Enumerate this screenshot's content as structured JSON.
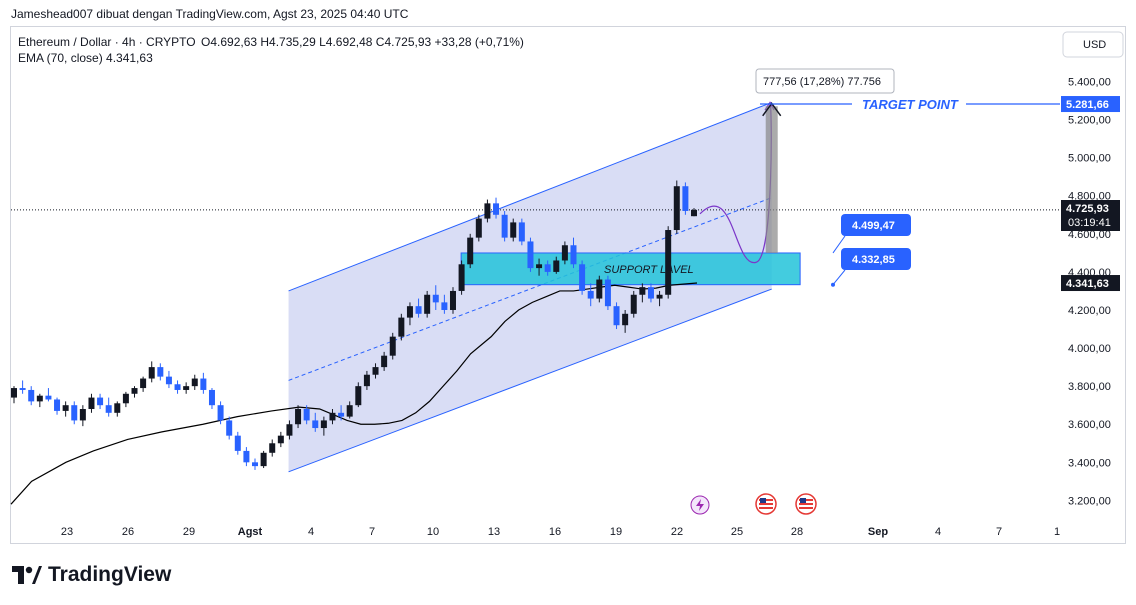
{
  "header": {
    "attribution": "Jameshead007 dibuat dengan TradingView.com, Agst 23, 2025 04:40 UTC"
  },
  "legend": {
    "symbol": "Ethereum / Dollar · 4h · CRYPTO",
    "ohlc": "O4.692,63  H4.735,29  L4.692,48  C4.725,93  +33,28 (+0,71%)",
    "ema": "EMA (70, close)  4.341,63"
  },
  "currency_button": "USD",
  "footer": {
    "brand": "TradingView"
  },
  "colors": {
    "candle_up": "#131722",
    "candle_down": "#2962ff",
    "channel_line": "#2962ff",
    "channel_fill": "#c5cbf0",
    "support_zone": "#22c3d9",
    "target_line": "#2962ff",
    "ema_line": "#000000",
    "projection": "#7b36c9"
  },
  "chart_data": {
    "type": "candlestick",
    "title": "Ethereum / Dollar · 4h · CRYPTO",
    "x_ticks": [
      "23",
      "26",
      "29",
      "Agst",
      "4",
      "7",
      "10",
      "13",
      "16",
      "19",
      "22",
      "25",
      "28",
      "Sep",
      "4",
      "7",
      "1"
    ],
    "y_ticks": [
      "5.400,00",
      "5.200,00",
      "5.000,00",
      "4.800,00",
      "4.600,00",
      "4.400,00",
      "4.200,00",
      "4.000,00",
      "3.800,00",
      "3.600,00",
      "3.400,00",
      "3.200,00"
    ],
    "y_tick_values": [
      5400,
      5200,
      5000,
      4800,
      4600,
      4400,
      4200,
      4000,
      3800,
      3600,
      3400,
      3200
    ],
    "ylim": [
      3140,
      5560
    ],
    "price_labels": {
      "target": {
        "text": "5.281,66",
        "value": 5281.66
      },
      "current": {
        "text": "4.725,93",
        "value": 4725.93
      },
      "countdown": "03:19:41",
      "ema": {
        "text": "4.341,63",
        "value": 4341.63
      }
    },
    "annotations": {
      "measure_label": "777,56 (17,28%) 77.756",
      "target_label": "TARGET POINT",
      "support_label": "SUPPORT LAVEL",
      "zone_top": {
        "text": "4.499,47",
        "value": 4499.47
      },
      "zone_bottom": {
        "text": "4.332,85",
        "value": 4332.85
      }
    },
    "channel": {
      "upper": [
        [
          "Agst 2",
          4300
        ],
        [
          "Agst 26",
          5290
        ]
      ],
      "lower": [
        [
          "Agst 2",
          3350
        ],
        [
          "Agst 26",
          4310
        ]
      ],
      "mid": [
        [
          "Agst 2",
          3830
        ],
        [
          "Agst 26",
          4790
        ]
      ]
    },
    "support_zone": {
      "from": "Agst 11",
      "to": "Agst 28",
      "low": 4332.85,
      "high": 4499.47
    },
    "ema_line": [
      [
        3180,
        0
      ],
      [
        3300,
        0.03
      ],
      [
        3400,
        0.08
      ],
      [
        3460,
        0.12
      ],
      [
        3520,
        0.17
      ],
      [
        3560,
        0.22
      ],
      [
        3600,
        0.28
      ],
      [
        3640,
        0.33
      ],
      [
        3670,
        0.38
      ],
      [
        3690,
        0.42
      ],
      [
        3680,
        0.45
      ],
      [
        3650,
        0.47
      ],
      [
        3620,
        0.49
      ],
      [
        3600,
        0.51
      ],
      [
        3600,
        0.53
      ],
      [
        3605,
        0.55
      ],
      [
        3620,
        0.57
      ],
      [
        3660,
        0.59
      ],
      [
        3720,
        0.61
      ],
      [
        3800,
        0.63
      ],
      [
        3880,
        0.65
      ],
      [
        3970,
        0.67
      ],
      [
        4060,
        0.7
      ],
      [
        4140,
        0.72
      ],
      [
        4200,
        0.74
      ],
      [
        4240,
        0.76
      ],
      [
        4270,
        0.78
      ],
      [
        4300,
        0.8
      ],
      [
        4300,
        0.82
      ],
      [
        4310,
        0.84
      ],
      [
        4320,
        0.86
      ],
      [
        4330,
        0.88
      ],
      [
        4320,
        0.9
      ],
      [
        4310,
        0.92
      ],
      [
        4315,
        0.94
      ],
      [
        4330,
        0.96
      ],
      [
        4341.63,
        1.0
      ]
    ],
    "candles": [
      [
        3740,
        3800,
        3710,
        3790
      ],
      [
        3790,
        3830,
        3760,
        3780
      ],
      [
        3780,
        3800,
        3700,
        3720
      ],
      [
        3720,
        3760,
        3690,
        3750
      ],
      [
        3750,
        3790,
        3720,
        3730
      ],
      [
        3730,
        3740,
        3650,
        3670
      ],
      [
        3670,
        3720,
        3640,
        3700
      ],
      [
        3700,
        3720,
        3600,
        3620
      ],
      [
        3620,
        3700,
        3590,
        3680
      ],
      [
        3680,
        3760,
        3660,
        3740
      ],
      [
        3740,
        3760,
        3680,
        3700
      ],
      [
        3700,
        3740,
        3640,
        3660
      ],
      [
        3660,
        3720,
        3640,
        3710
      ],
      [
        3710,
        3770,
        3690,
        3760
      ],
      [
        3760,
        3800,
        3740,
        3790
      ],
      [
        3790,
        3850,
        3770,
        3840
      ],
      [
        3840,
        3930,
        3820,
        3900
      ],
      [
        3900,
        3920,
        3830,
        3850
      ],
      [
        3850,
        3880,
        3790,
        3810
      ],
      [
        3810,
        3830,
        3760,
        3780
      ],
      [
        3780,
        3820,
        3760,
        3800
      ],
      [
        3800,
        3860,
        3780,
        3840
      ],
      [
        3840,
        3870,
        3760,
        3780
      ],
      [
        3780,
        3790,
        3680,
        3700
      ],
      [
        3700,
        3720,
        3600,
        3620
      ],
      [
        3620,
        3640,
        3520,
        3540
      ],
      [
        3540,
        3560,
        3440,
        3460
      ],
      [
        3460,
        3480,
        3380,
        3400
      ],
      [
        3400,
        3420,
        3360,
        3380
      ],
      [
        3380,
        3460,
        3370,
        3450
      ],
      [
        3450,
        3520,
        3430,
        3500
      ],
      [
        3500,
        3560,
        3480,
        3540
      ],
      [
        3540,
        3620,
        3520,
        3600
      ],
      [
        3600,
        3700,
        3580,
        3680
      ],
      [
        3680,
        3700,
        3600,
        3620
      ],
      [
        3620,
        3660,
        3560,
        3580
      ],
      [
        3580,
        3640,
        3540,
        3620
      ],
      [
        3620,
        3680,
        3600,
        3660
      ],
      [
        3660,
        3700,
        3620,
        3640
      ],
      [
        3640,
        3720,
        3630,
        3700
      ],
      [
        3700,
        3820,
        3690,
        3800
      ],
      [
        3800,
        3880,
        3780,
        3860
      ],
      [
        3860,
        3920,
        3840,
        3900
      ],
      [
        3900,
        3980,
        3880,
        3960
      ],
      [
        3960,
        4080,
        3940,
        4060
      ],
      [
        4060,
        4180,
        4040,
        4160
      ],
      [
        4160,
        4240,
        4120,
        4220
      ],
      [
        4220,
        4260,
        4160,
        4180
      ],
      [
        4180,
        4300,
        4160,
        4280
      ],
      [
        4280,
        4330,
        4200,
        4240
      ],
      [
        4240,
        4280,
        4180,
        4200
      ],
      [
        4200,
        4320,
        4180,
        4300
      ],
      [
        4300,
        4460,
        4280,
        4440
      ],
      [
        4440,
        4600,
        4420,
        4580
      ],
      [
        4580,
        4700,
        4560,
        4680
      ],
      [
        4680,
        4780,
        4660,
        4760
      ],
      [
        4760,
        4790,
        4680,
        4700
      ],
      [
        4700,
        4720,
        4560,
        4580
      ],
      [
        4580,
        4680,
        4560,
        4660
      ],
      [
        4660,
        4680,
        4540,
        4560
      ],
      [
        4560,
        4580,
        4400,
        4420
      ],
      [
        4420,
        4470,
        4380,
        4440
      ],
      [
        4440,
        4460,
        4380,
        4400
      ],
      [
        4400,
        4480,
        4390,
        4460
      ],
      [
        4460,
        4560,
        4440,
        4540
      ],
      [
        4540,
        4580,
        4420,
        4440
      ],
      [
        4440,
        4460,
        4280,
        4300
      ],
      [
        4300,
        4340,
        4220,
        4260
      ],
      [
        4260,
        4380,
        4240,
        4360
      ],
      [
        4360,
        4380,
        4200,
        4220
      ],
      [
        4220,
        4240,
        4100,
        4120
      ],
      [
        4120,
        4200,
        4080,
        4180
      ],
      [
        4180,
        4300,
        4160,
        4280
      ],
      [
        4280,
        4340,
        4240,
        4320
      ],
      [
        4320,
        4340,
        4240,
        4260
      ],
      [
        4260,
        4300,
        4220,
        4280
      ],
      [
        4280,
        4640,
        4260,
        4620
      ],
      [
        4620,
        4880,
        4600,
        4850
      ],
      [
        4850,
        4870,
        4700,
        4720
      ],
      [
        4692.63,
        4735.29,
        4692.48,
        4725.93
      ]
    ]
  }
}
